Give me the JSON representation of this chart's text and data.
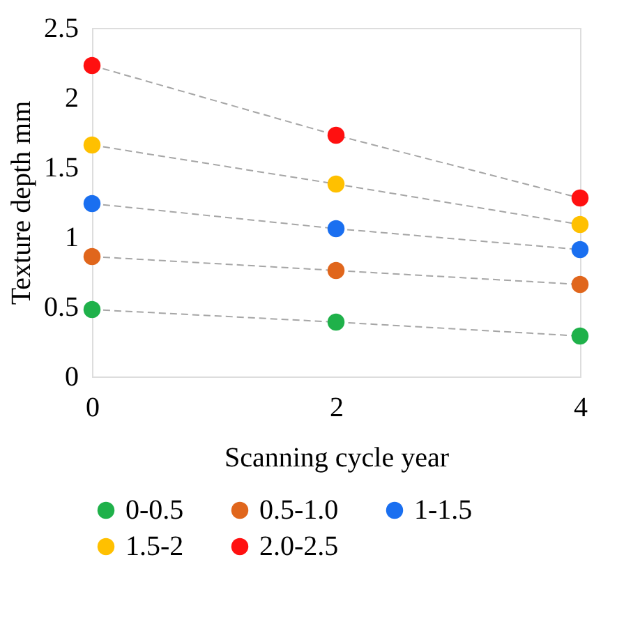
{
  "chart_data": {
    "type": "scatter",
    "xlabel": "Scanning cycle year",
    "ylabel": "Texture depth mm",
    "x": [
      0,
      2,
      4
    ],
    "xlim": [
      0,
      4
    ],
    "xticks": [
      0,
      2,
      4
    ],
    "ylim": [
      0,
      2.5
    ],
    "yticks": [
      0,
      0.5,
      1,
      1.5,
      2,
      2.5
    ],
    "grid": false,
    "legend": "bottom",
    "marker": "circle",
    "series": [
      {
        "name": "0-0.5",
        "color": "#1fb14a",
        "values": [
          0.48,
          0.39,
          0.29
        ]
      },
      {
        "name": "0.5-1.0",
        "color": "#e0661c",
        "values": [
          0.86,
          0.76,
          0.66
        ]
      },
      {
        "name": "1-1.5",
        "color": "#1a6ff0",
        "values": [
          1.24,
          1.06,
          0.91
        ]
      },
      {
        "name": "1.5-2",
        "color": "#ffc000",
        "values": [
          1.66,
          1.38,
          1.09
        ]
      },
      {
        "name": "2.0-2.5",
        "color": "#ff1010",
        "values": [
          2.23,
          1.73,
          1.28
        ]
      },
      {
        "type": "line",
        "color": "#a6a6a6",
        "line_style": "dashed",
        "values": [
          0.48,
          0.39,
          0.29
        ]
      },
      {
        "type": "line",
        "color": "#a6a6a6",
        "line_style": "dashed",
        "values": [
          0.86,
          0.76,
          0.66
        ]
      },
      {
        "type": "line",
        "color": "#a6a6a6",
        "line_style": "dashed",
        "values": [
          1.24,
          1.06,
          0.91
        ]
      },
      {
        "type": "line",
        "color": "#a6a6a6",
        "line_style": "dashed",
        "values": [
          1.66,
          1.38,
          1.09
        ]
      },
      {
        "type": "line",
        "color": "#a6a6a6",
        "line_style": "dashed",
        "values": [
          2.23,
          1.73,
          1.28
        ]
      }
    ]
  }
}
